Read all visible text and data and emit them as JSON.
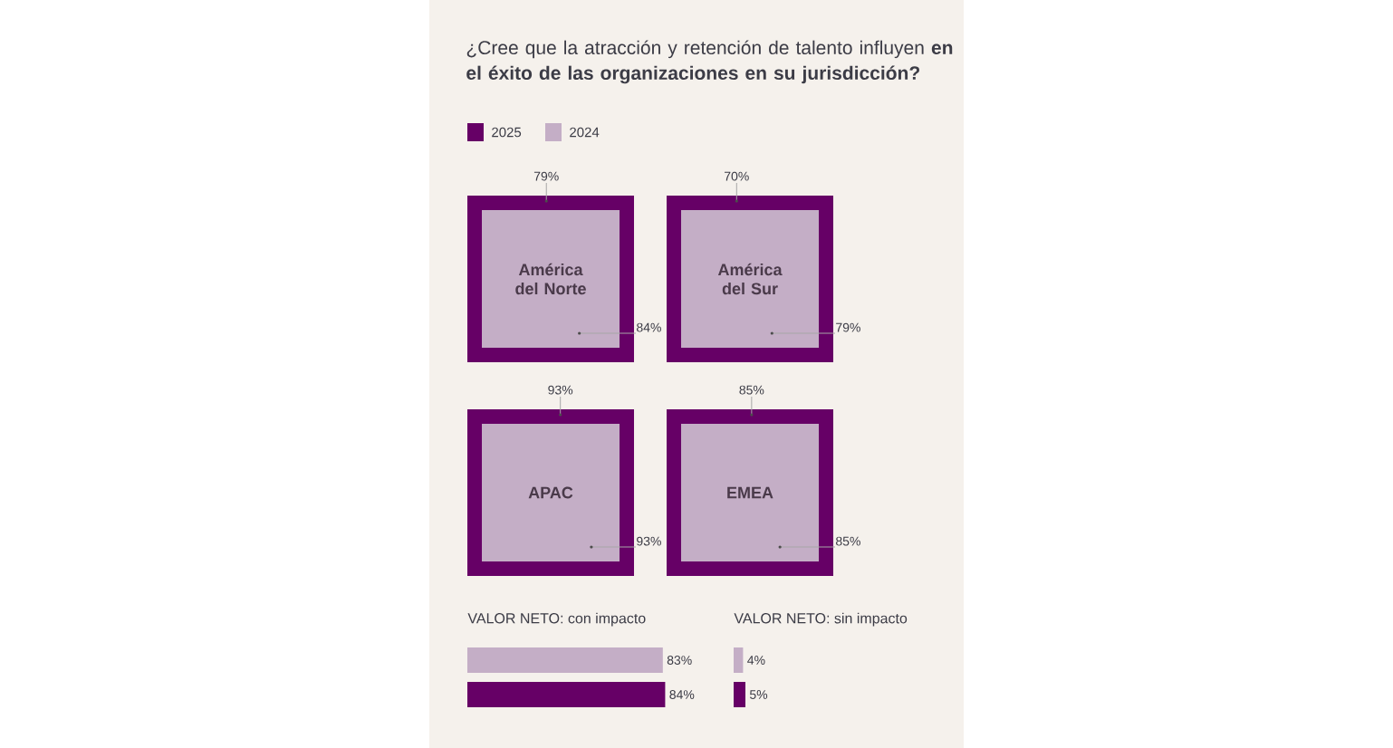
{
  "chart_data": [
    {
      "type": "other",
      "title": "¿Cree que la atracción y retención de talento influyen **en el éxito de las organizaciones en su jurisdicción?**",
      "categories": [
        "América del Norte",
        "América del Sur",
        "APAC",
        "EMEA"
      ],
      "legend": "top left",
      "series": [
        {
          "name": "2025",
          "color": "#660066",
          "values": [
            79,
            70,
            93,
            85
          ],
          "value_labels": [
            "79%",
            "70%",
            "93%",
            "85%"
          ]
        },
        {
          "name": "2024",
          "color": "#c4aec6",
          "values": [
            84,
            79,
            93,
            85
          ],
          "value_labels": [
            "84%",
            "79%",
            "93%",
            "85%"
          ]
        }
      ]
    },
    {
      "type": "bar",
      "orientation": "horizontal",
      "title": "VALOR NETO: con impacto",
      "categories": [
        null,
        null
      ],
      "values": [
        83,
        84
      ],
      "colors": [
        "#c4aec6",
        "#660066"
      ],
      "value_labels": [
        "83%",
        "84%"
      ]
    },
    {
      "type": "bar",
      "orientation": "horizontal",
      "title": "VALOR NETO: sin impacto",
      "categories": [
        null,
        null
      ],
      "values": [
        4,
        5
      ],
      "colors": [
        "#c4aec6",
        "#660066"
      ],
      "value_labels": [
        "4%",
        "5%"
      ]
    }
  ]
}
